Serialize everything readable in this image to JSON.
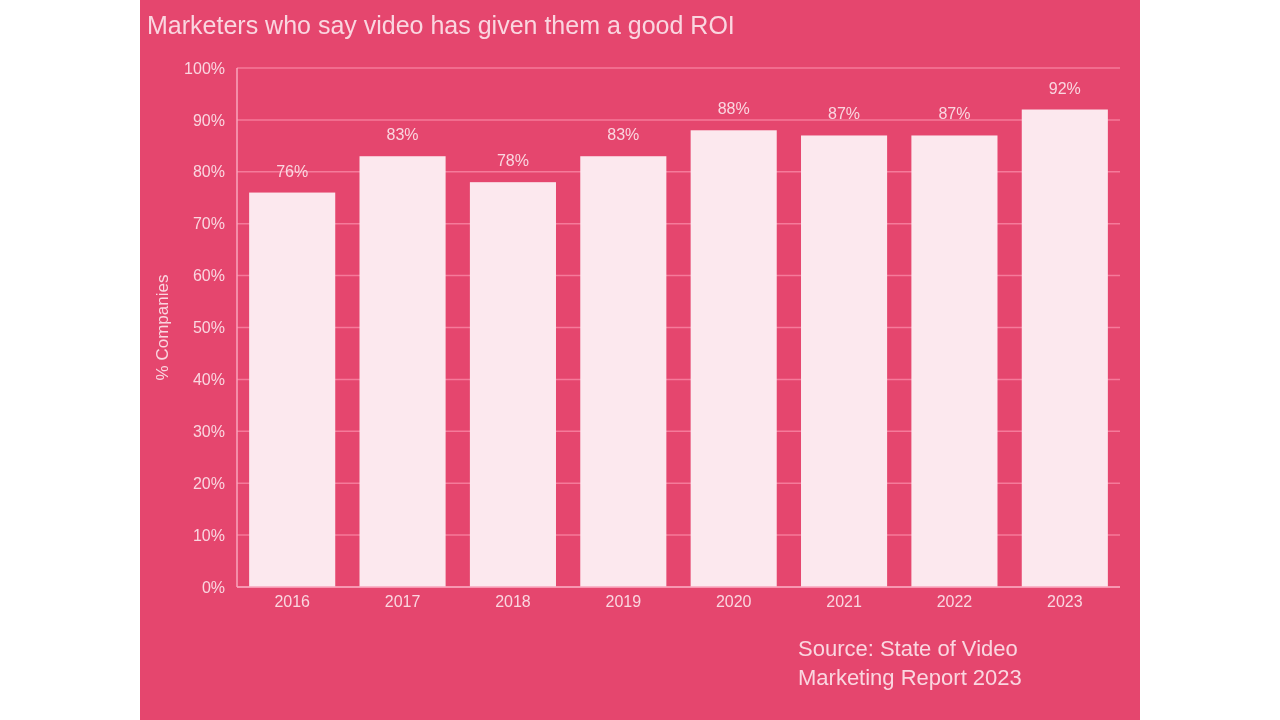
{
  "chart_data": {
    "type": "bar",
    "title": "Marketers who say video has given them a good ROI",
    "ylabel": "% Companies",
    "categories": [
      "2016",
      "2017",
      "2018",
      "2019",
      "2020",
      "2021",
      "2022",
      "2023"
    ],
    "values": [
      76,
      83,
      78,
      83,
      88,
      87,
      87,
      92
    ],
    "value_labels": [
      "76%",
      "83%",
      "78%",
      "83%",
      "88%",
      "87%",
      "87%",
      "92%"
    ],
    "color": "#fce8ee",
    "ylim": [
      0,
      100
    ],
    "yticks": [
      {
        "value": 0,
        "label": "0%"
      },
      {
        "value": 10,
        "label": "10%"
      },
      {
        "value": 20,
        "label": "20%"
      },
      {
        "value": 30,
        "label": "30%"
      },
      {
        "value": 40,
        "label": "40%"
      },
      {
        "value": 50,
        "label": "50%"
      },
      {
        "value": 60,
        "label": "60%"
      },
      {
        "value": 70,
        "label": "70%"
      },
      {
        "value": 80,
        "label": "80%"
      },
      {
        "value": 90,
        "label": "90%"
      },
      {
        "value": 100,
        "label": "100%"
      }
    ],
    "grid": "y",
    "annotations": [
      "Source: State of Video Marketing Report 2023"
    ]
  }
}
